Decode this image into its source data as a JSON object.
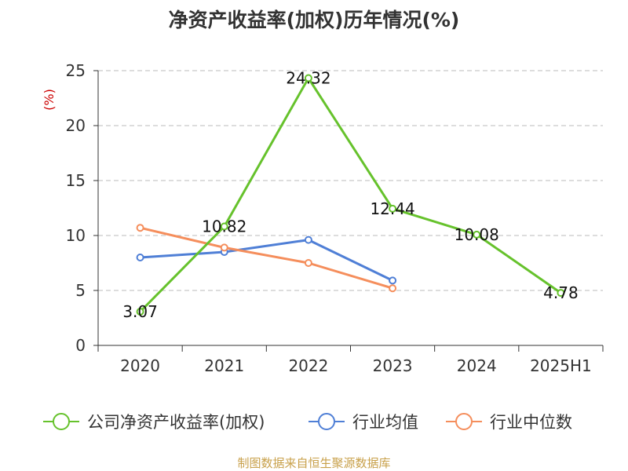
{
  "title": "净资产收益率(加权)历年情况(%)",
  "source_note": "制图数据来自恒生聚源数据库",
  "colors": {
    "roe": "#66c22c",
    "industry_avg": "#4f7fd6",
    "industry_median": "#f58e5c",
    "axis": "#333333",
    "grid": "#bbbbbb",
    "unit": "#cc0000"
  },
  "chart_data": {
    "type": "line",
    "title": "净资产收益率(加权)历年情况(%)",
    "ylabel": "(%)",
    "xlabel": "",
    "categories": [
      "2020",
      "2021",
      "2022",
      "2023",
      "2024",
      "2025H1"
    ],
    "ylim": [
      0,
      25
    ],
    "yticks": [
      0,
      5,
      10,
      15,
      20,
      25
    ],
    "grid": true,
    "legend_position": "bottom",
    "series": [
      {
        "name": "公司净资产收益率(加权)",
        "color": "#66c22c",
        "values": [
          3.07,
          10.82,
          24.32,
          12.44,
          10.08,
          4.78
        ],
        "labels": [
          "3.07",
          "10.82",
          "24.32",
          "12.44",
          "10.08",
          "4.78"
        ],
        "show_labels": true
      },
      {
        "name": "行业均值",
        "color": "#4f7fd6",
        "values": [
          8.0,
          8.5,
          9.6,
          5.9,
          null,
          null
        ],
        "show_labels": false
      },
      {
        "name": "行业中位数",
        "color": "#f58e5c",
        "values": [
          10.7,
          8.9,
          7.5,
          5.2,
          null,
          null
        ],
        "show_labels": false
      }
    ]
  }
}
